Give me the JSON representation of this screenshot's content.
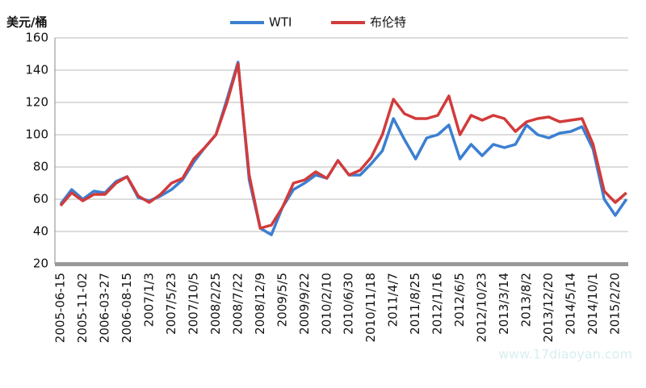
{
  "chart_data": {
    "type": "line",
    "y_label": "美元/桶",
    "watermark": "www.17diaoyan.com",
    "categories": [
      "2005-06-15",
      null,
      "2005-11-02",
      null,
      "2006-03-27",
      null,
      "2006-08-15",
      null,
      "2007/1/3",
      null,
      "2007/5/23",
      null,
      "2007/10/5",
      null,
      "2008/2/25",
      null,
      "2008/7/22",
      null,
      "2008/12/9",
      null,
      "2009/5/5",
      null,
      "2009/9/22",
      null,
      "2010/2/10",
      null,
      "2010/6/30",
      null,
      "2010/11/18",
      null,
      "2011/4/7",
      null,
      "2011/8/25",
      null,
      "2012/1/16",
      null,
      "2012/6/5",
      null,
      "2012/10/23",
      null,
      "2013/3/14",
      null,
      "2013/8/2",
      null,
      "2013/12/20",
      null,
      "2014/5/14",
      null,
      "2014/10/1",
      null,
      "2015/2/20",
      null
    ],
    "series": [
      {
        "name": "WTI",
        "color": "#3b7fd1",
        "values": [
          57,
          66,
          60,
          65,
          64,
          71,
          74,
          61,
          59,
          62,
          66,
          72,
          83,
          92,
          100,
          122,
          145,
          72,
          42,
          38,
          55,
          66,
          70,
          75,
          73,
          84,
          75,
          75,
          82,
          90,
          110,
          97,
          85,
          98,
          100,
          106,
          85,
          94,
          87,
          94,
          92,
          94,
          106,
          100,
          98,
          101,
          102,
          105,
          91,
          60,
          50,
          60
        ]
      },
      {
        "name": "布伦特",
        "color": "#d23b3b",
        "values": [
          56,
          64,
          59,
          63,
          63,
          70,
          74,
          62,
          58,
          63,
          70,
          73,
          85,
          92,
          100,
          120,
          144,
          75,
          42,
          44,
          55,
          70,
          72,
          77,
          73,
          84,
          75,
          78,
          86,
          100,
          122,
          113,
          110,
          110,
          112,
          124,
          100,
          112,
          109,
          112,
          110,
          102,
          108,
          110,
          111,
          108,
          109,
          110,
          94,
          65,
          58,
          64
        ]
      }
    ],
    "ylim": [
      20,
      160
    ],
    "yticks": [
      20,
      40,
      60,
      80,
      100,
      120,
      140,
      160
    ],
    "grid": true,
    "legend": "top"
  }
}
